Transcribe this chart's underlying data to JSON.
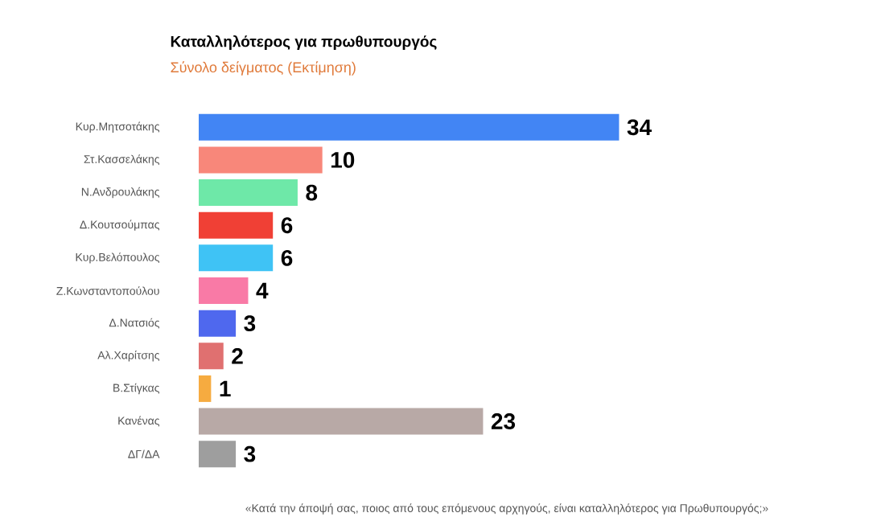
{
  "chart_data": {
    "type": "bar",
    "orientation": "horizontal",
    "title": "Καταλληλότερος για πρωθυπουργός",
    "subtitle": "Σύνολο δείγματος   (Εκτίμηση)",
    "categories": [
      "Κυρ.Μητσοτάκης",
      "Στ.Κασσελάκης",
      "Ν.Ανδρουλάκης",
      "Δ.Κουτσούμπας",
      "Κυρ.Βελόπουλος",
      "Ζ.Κωνσταντοπούλου",
      "Δ.Νατσιός",
      "Αλ.Χαρίτσης",
      "Β.Στίγκας",
      "Κανένας",
      "ΔΓ/ΔΑ"
    ],
    "values": [
      34,
      10,
      8,
      6,
      6,
      4,
      3,
      2,
      1,
      23,
      3
    ],
    "colors": [
      "#4285f4",
      "#f8877a",
      "#6ee8a8",
      "#f04035",
      "#3fc3f5",
      "#f97aa6",
      "#4f68ee",
      "#e07070",
      "#f6ab40",
      "#b8a9a6",
      "#9e9e9e"
    ],
    "data_labels": true,
    "annotations": [
      "«Κατά την άποψή σας, ποιος από τους επόμενους αρχηγούς, είναι καταλληλότερος για Πρωθυπουργός;»"
    ]
  }
}
